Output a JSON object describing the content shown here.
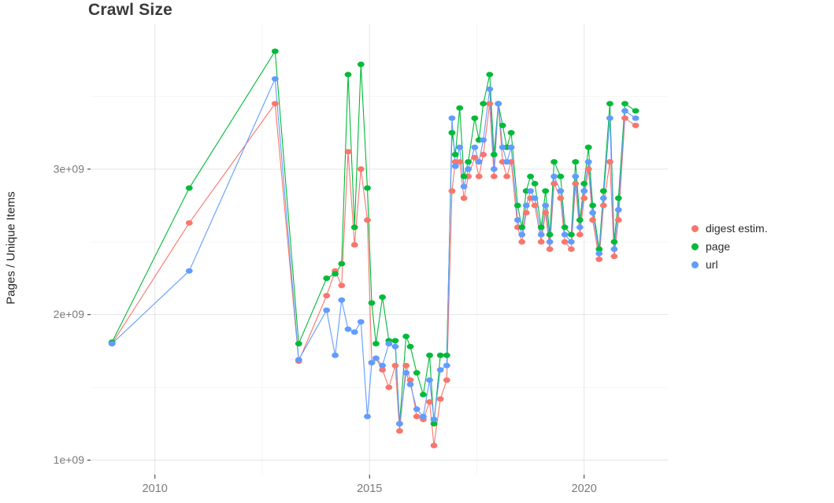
{
  "chart_data": {
    "type": "line",
    "title": "Crawl Size",
    "xlabel": "",
    "ylabel": "Pages / Unique Items",
    "legend_position": "right",
    "grid": true,
    "background": "#ffffff",
    "major_grid_color": "#e4e4e4",
    "minor_grid_color": "#f1f1f1",
    "axis_text_color": "#7a7a7a",
    "y_unit": 1000000000,
    "x_domain": [
      2008.5,
      2021.95
    ],
    "y_domain_units": [
      0.9,
      4.0
    ],
    "x_ticks": [
      {
        "value": 2010,
        "label": "2010"
      },
      {
        "value": 2015,
        "label": "2015"
      },
      {
        "value": 2020,
        "label": "2020"
      }
    ],
    "x_minor_ticks": [
      2012.5,
      2017.5
    ],
    "y_ticks": [
      {
        "value": 1,
        "label": "1e+09"
      },
      {
        "value": 2,
        "label": "2e+09"
      },
      {
        "value": 3,
        "label": "3e+09"
      }
    ],
    "y_minor_ticks": [
      1.5,
      2.5,
      3.5
    ],
    "x": [
      2009.0,
      2010.8,
      2012.8,
      2013.35,
      2014.0,
      2014.2,
      2014.35,
      2014.5,
      2014.65,
      2014.8,
      2014.95,
      2015.05,
      2015.15,
      2015.3,
      2015.45,
      2015.6,
      2015.7,
      2015.85,
      2015.95,
      2016.1,
      2016.25,
      2016.4,
      2016.5,
      2016.65,
      2016.8,
      2016.92,
      2017.0,
      2017.1,
      2017.2,
      2017.3,
      2017.45,
      2017.55,
      2017.65,
      2017.8,
      2017.9,
      2018.0,
      2018.1,
      2018.2,
      2018.3,
      2018.45,
      2018.55,
      2018.65,
      2018.75,
      2018.85,
      2019.0,
      2019.1,
      2019.2,
      2019.3,
      2019.45,
      2019.55,
      2019.7,
      2019.8,
      2019.9,
      2020.0,
      2020.1,
      2020.2,
      2020.35,
      2020.45,
      2020.6,
      2020.7,
      2020.8,
      2020.95,
      2021.2
    ],
    "series": [
      {
        "name": "digest estim.",
        "color": "#F8766D",
        "values_unit_1e9": [
          1.8,
          2.63,
          3.45,
          1.68,
          2.13,
          2.3,
          2.2,
          3.12,
          2.48,
          3.0,
          2.65,
          1.67,
          1.7,
          1.62,
          1.5,
          1.65,
          1.2,
          1.65,
          1.55,
          1.3,
          1.28,
          1.4,
          1.1,
          1.42,
          1.55,
          2.85,
          3.05,
          3.05,
          2.8,
          2.95,
          3.08,
          2.95,
          3.1,
          3.45,
          2.95,
          3.45,
          3.05,
          2.95,
          3.05,
          2.6,
          2.5,
          2.7,
          2.8,
          2.75,
          2.5,
          2.7,
          2.45,
          2.9,
          2.8,
          2.5,
          2.45,
          2.9,
          2.55,
          2.8,
          3.0,
          2.65,
          2.38,
          2.75,
          3.05,
          2.4,
          2.65,
          3.35,
          3.3
        ]
      },
      {
        "name": "page",
        "color": "#00BA38",
        "values_unit_1e9": [
          1.81,
          2.87,
          3.81,
          1.8,
          2.25,
          2.28,
          2.35,
          3.65,
          2.6,
          3.72,
          2.87,
          2.08,
          1.8,
          2.12,
          1.82,
          1.82,
          1.25,
          1.85,
          1.78,
          1.6,
          1.45,
          1.72,
          1.25,
          1.72,
          1.72,
          3.25,
          3.1,
          3.42,
          2.95,
          3.05,
          3.35,
          3.2,
          3.45,
          3.65,
          3.1,
          3.45,
          3.3,
          3.15,
          3.25,
          2.75,
          2.6,
          2.85,
          2.95,
          2.9,
          2.6,
          2.85,
          2.55,
          3.05,
          2.95,
          2.6,
          2.55,
          3.05,
          2.65,
          2.9,
          3.15,
          2.75,
          2.45,
          2.85,
          3.45,
          2.5,
          2.8,
          3.45,
          3.4
        ]
      },
      {
        "name": "url",
        "color": "#619CFF",
        "values_unit_1e9": [
          1.8,
          2.3,
          3.62,
          1.69,
          2.03,
          1.72,
          2.1,
          1.9,
          1.88,
          1.95,
          1.3,
          1.67,
          1.7,
          1.65,
          1.8,
          1.78,
          1.25,
          1.6,
          1.52,
          1.35,
          1.3,
          1.55,
          1.28,
          1.62,
          1.65,
          3.35,
          3.02,
          3.15,
          2.88,
          3.0,
          3.15,
          3.05,
          3.2,
          3.55,
          3.0,
          3.45,
          3.15,
          3.05,
          3.15,
          2.65,
          2.55,
          2.75,
          2.85,
          2.8,
          2.55,
          2.75,
          2.5,
          2.95,
          2.85,
          2.55,
          2.5,
          2.95,
          2.6,
          2.85,
          3.05,
          2.7,
          2.42,
          2.8,
          3.35,
          2.45,
          2.72,
          3.4,
          3.35
        ]
      }
    ]
  }
}
